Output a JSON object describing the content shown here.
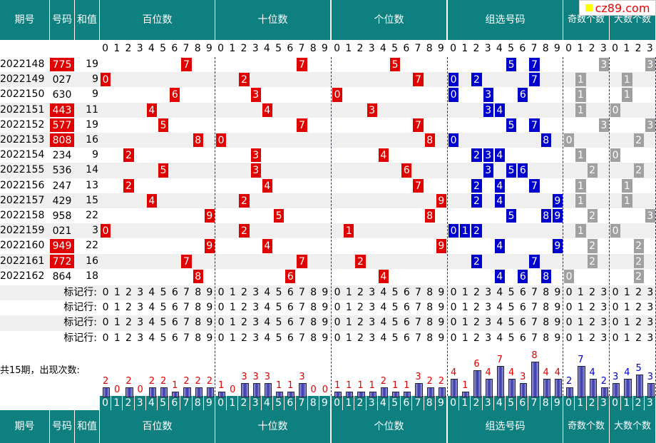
{
  "brand": "cz89.com",
  "colors": {
    "header": "#0e8080",
    "red_ball": "#e00000",
    "blue_ball": "#0000cc",
    "gray_ball": "#a0a0a0",
    "row_alt": "#efefef",
    "bar": "#3535a8",
    "count_text": "#e00000"
  },
  "headers": {
    "period": "期号",
    "number": "号码",
    "sum": "和值",
    "hundreds": "百位数",
    "tens": "十位数",
    "units": "个位数",
    "group": "组选号码",
    "odd": "奇数个数",
    "big": "大数个数"
  },
  "digits10": [
    "0",
    "1",
    "2",
    "3",
    "4",
    "5",
    "6",
    "7",
    "8",
    "9"
  ],
  "digits4": [
    "0",
    "1",
    "2",
    "3"
  ],
  "rows": [
    {
      "period": "2022148",
      "number": "775",
      "sum": "19",
      "red": true,
      "h": 7,
      "t": 7,
      "u": 5,
      "group": [
        5,
        7
      ],
      "odd": 3,
      "big": 3
    },
    {
      "period": "2022149",
      "number": "027",
      "sum": "9",
      "red": false,
      "h": 0,
      "t": 2,
      "u": 7,
      "group": [
        0,
        2,
        7
      ],
      "odd": 1,
      "big": 1
    },
    {
      "period": "2022150",
      "number": "630",
      "sum": "9",
      "red": false,
      "h": 6,
      "t": 3,
      "u": 0,
      "group": [
        0,
        3,
        6
      ],
      "odd": 1,
      "big": 1
    },
    {
      "period": "2022151",
      "number": "443",
      "sum": "11",
      "red": true,
      "h": 4,
      "t": 4,
      "u": 3,
      "group": [
        3,
        4
      ],
      "odd": 1,
      "big": 0
    },
    {
      "period": "2022152",
      "number": "577",
      "sum": "19",
      "red": true,
      "h": 5,
      "t": 7,
      "u": 7,
      "group": [
        5,
        7
      ],
      "odd": 3,
      "big": 3
    },
    {
      "period": "2022153",
      "number": "808",
      "sum": "16",
      "red": true,
      "h": 8,
      "t": 0,
      "u": 8,
      "group": [
        0,
        8
      ],
      "odd": 0,
      "big": 2
    },
    {
      "period": "2022154",
      "number": "234",
      "sum": "9",
      "red": false,
      "h": 2,
      "t": 3,
      "u": 4,
      "group": [
        2,
        3,
        4
      ],
      "odd": 1,
      "big": 0
    },
    {
      "period": "2022155",
      "number": "536",
      "sum": "14",
      "red": false,
      "h": 5,
      "t": 3,
      "u": 6,
      "group": [
        3,
        5,
        6
      ],
      "odd": 2,
      "big": 2
    },
    {
      "period": "2022156",
      "number": "247",
      "sum": "13",
      "red": false,
      "h": 2,
      "t": 4,
      "u": 7,
      "group": [
        2,
        4,
        7
      ],
      "odd": 1,
      "big": 1
    },
    {
      "period": "2022157",
      "number": "429",
      "sum": "15",
      "red": false,
      "h": 4,
      "t": 2,
      "u": 9,
      "group": [
        2,
        4,
        9
      ],
      "odd": 1,
      "big": 1
    },
    {
      "period": "2022158",
      "number": "958",
      "sum": "22",
      "red": false,
      "h": 9,
      "t": 5,
      "u": 8,
      "group": [
        5,
        8,
        9
      ],
      "odd": 2,
      "big": 3
    },
    {
      "period": "2022159",
      "number": "021",
      "sum": "3",
      "red": false,
      "h": 0,
      "t": 2,
      "u": 1,
      "group": [
        0,
        1,
        2
      ],
      "odd": 1,
      "big": 0
    },
    {
      "period": "2022160",
      "number": "949",
      "sum": "22",
      "red": true,
      "h": 9,
      "t": 4,
      "u": 9,
      "group": [
        4,
        9
      ],
      "odd": 2,
      "big": 2
    },
    {
      "period": "2022161",
      "number": "772",
      "sum": "16",
      "red": true,
      "h": 7,
      "t": 7,
      "u": 2,
      "group": [
        2,
        7
      ],
      "odd": 2,
      "big": 2
    },
    {
      "period": "2022162",
      "number": "864",
      "sum": "18",
      "red": false,
      "h": 8,
      "t": 6,
      "u": 4,
      "group": [
        4,
        6,
        8
      ],
      "odd": 0,
      "big": 2
    }
  ],
  "marker_label": "标记行:",
  "marker_rows": 4,
  "count_label": "共15期，出现次数:",
  "counts": {
    "hundreds": [
      2,
      0,
      2,
      0,
      2,
      2,
      1,
      2,
      2,
      2
    ],
    "tens": [
      1,
      0,
      3,
      3,
      3,
      1,
      1,
      3,
      0,
      0
    ],
    "units": [
      1,
      1,
      1,
      1,
      2,
      1,
      1,
      3,
      2,
      2
    ],
    "group": [
      4,
      1,
      6,
      4,
      7,
      4,
      3,
      8,
      4,
      4
    ],
    "odd": [
      2,
      7,
      4,
      2
    ],
    "big": [
      3,
      4,
      5,
      3
    ]
  }
}
